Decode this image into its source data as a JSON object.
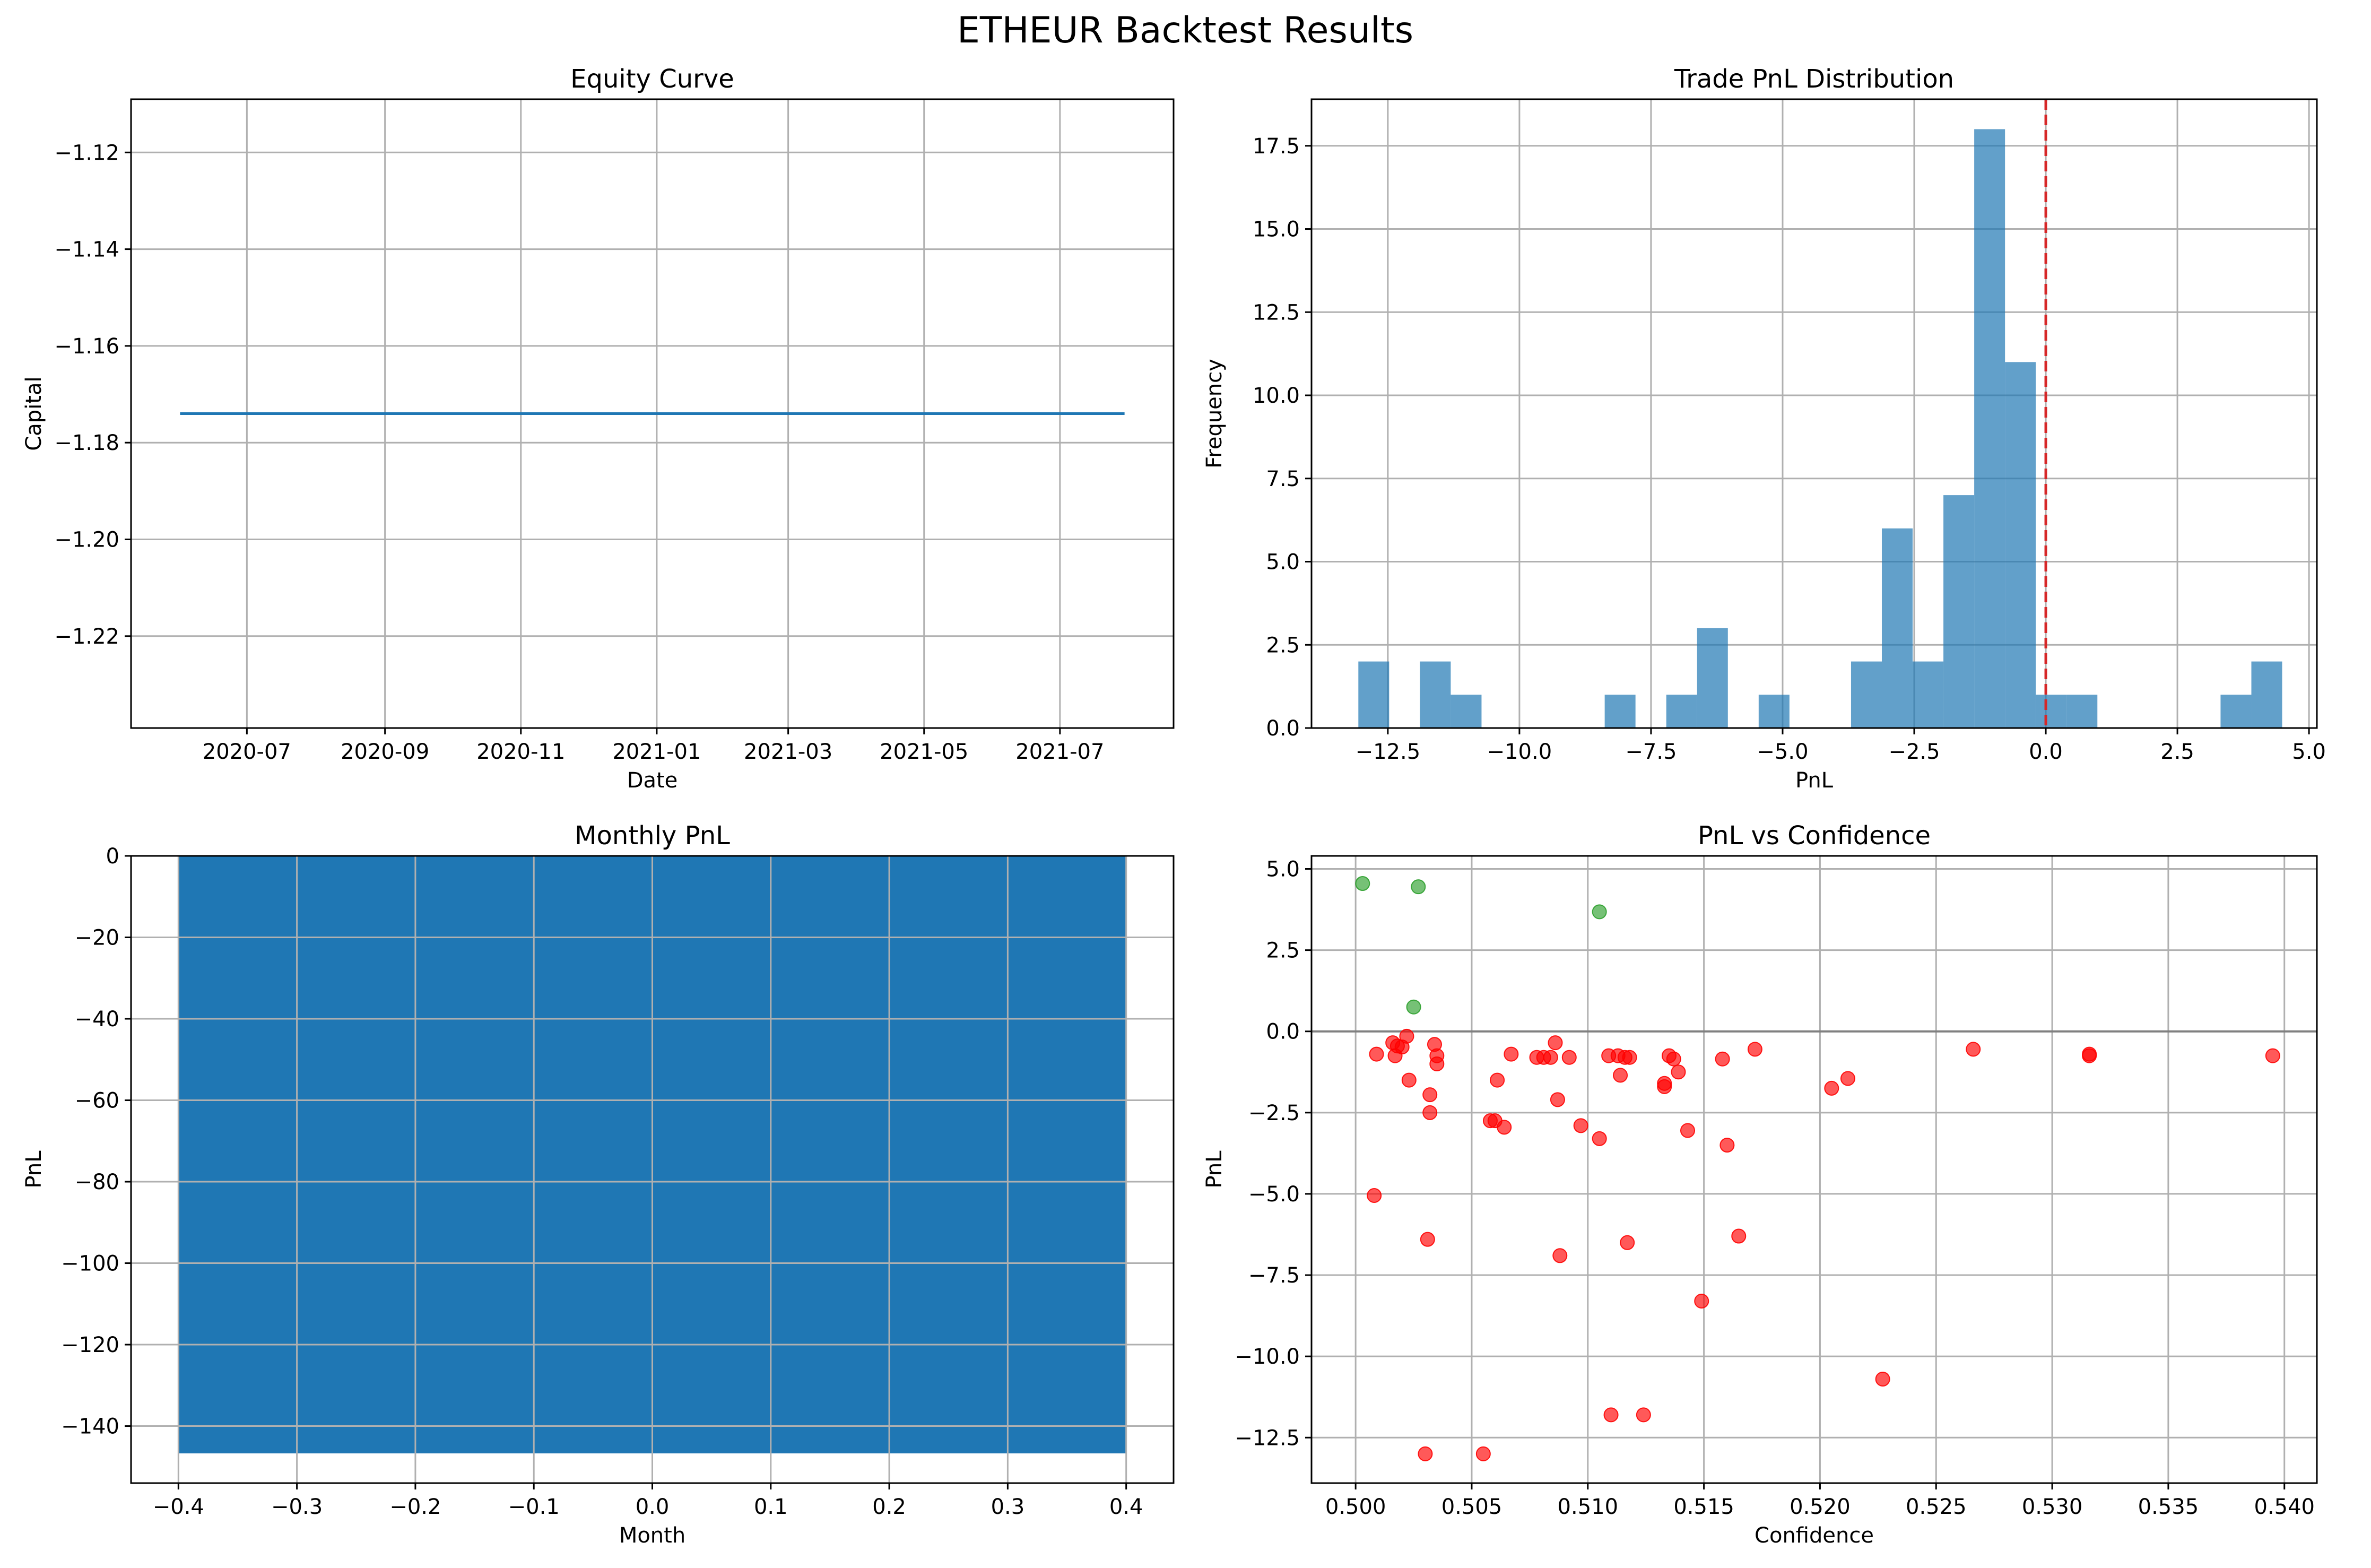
{
  "figure": {
    "title": "ETHEUR Backtest Results"
  },
  "chart_data": [
    {
      "id": "equity",
      "type": "line",
      "title": "Equity Curve",
      "xlabel": "Date",
      "ylabel": "Capital",
      "x_dates": [
        "2020-06-01",
        "2021-07-30"
      ],
      "xlim_dates": [
        "2020-05-10",
        "2021-08-21"
      ],
      "series": [
        {
          "x": [
            "2020-06-01",
            "2021-07-30"
          ],
          "values": [
            -1.174,
            -1.174
          ]
        }
      ],
      "ylim": [
        -1.239,
        -1.109
      ],
      "xticks": [
        "2020-07-01",
        "2020-09-01",
        "2020-11-01",
        "2021-01-01",
        "2021-03-01",
        "2021-05-01",
        "2021-07-01"
      ],
      "xtick_labels": [
        "2020-07",
        "2020-09",
        "2020-11",
        "2021-01",
        "2021-03",
        "2021-05",
        "2021-07"
      ],
      "yticks": [
        -1.22,
        -1.2,
        -1.18,
        -1.16,
        -1.14,
        -1.12
      ],
      "ytick_labels": [
        "−1.22",
        "−1.20",
        "−1.18",
        "−1.16",
        "−1.14",
        "−1.12"
      ],
      "grid": true,
      "color": "#1f77b4"
    },
    {
      "id": "hist",
      "type": "bar",
      "title": "Trade PnL Distribution",
      "xlabel": "PnL",
      "ylabel": "Frequency",
      "bin_start": -13.06,
      "bin_width": 0.585,
      "counts": [
        2,
        0,
        2,
        1,
        0,
        0,
        0,
        0,
        1,
        0,
        1,
        3,
        0,
        1,
        0,
        0,
        2,
        6,
        2,
        7,
        18,
        11,
        1,
        1,
        0,
        0,
        0,
        0,
        1,
        2
      ],
      "xlim": [
        -13.95,
        5.15
      ],
      "ylim": [
        0,
        18.9
      ],
      "xticks": [
        -12.5,
        -10,
        -7.5,
        -5,
        -2.5,
        0,
        2.5,
        5
      ],
      "xtick_labels": [
        "−12.5",
        "−10.0",
        "−7.5",
        "−5.0",
        "−2.5",
        "0.0",
        "2.5",
        "5.0"
      ],
      "yticks": [
        0,
        2.5,
        5,
        7.5,
        10,
        12.5,
        15,
        17.5
      ],
      "ytick_labels": [
        "0.0",
        "2.5",
        "5.0",
        "7.5",
        "10.0",
        "12.5",
        "15.0",
        "17.5"
      ],
      "vline": 0,
      "vline_color": "#d62728",
      "color": "#1f77b4",
      "grid": true
    },
    {
      "id": "monthly",
      "type": "bar",
      "title": "Monthly PnL",
      "xlabel": "Month",
      "ylabel": "PnL",
      "categories": [
        0
      ],
      "values": [
        -146.7
      ],
      "bar_width": 0.8,
      "xlim": [
        -0.44,
        0.44
      ],
      "ylim": [
        -154,
        0
      ],
      "xticks": [
        -0.4,
        -0.3,
        -0.2,
        -0.1,
        0,
        0.1,
        0.2,
        0.3,
        0.4
      ],
      "xtick_labels": [
        "−0.4",
        "−0.3",
        "−0.2",
        "−0.1",
        "0.0",
        "0.1",
        "0.2",
        "0.3",
        "0.4"
      ],
      "yticks": [
        -140,
        -120,
        -100,
        -80,
        -60,
        -40,
        -20,
        0
      ],
      "ytick_labels": [
        "−140",
        "−120",
        "−100",
        "−80",
        "−60",
        "−40",
        "−20",
        "0"
      ],
      "color": "#1f77b4",
      "grid": true
    },
    {
      "id": "scatter",
      "type": "scatter",
      "title": "PnL vs Confidence",
      "xlabel": "Confidence",
      "ylabel": "PnL",
      "xlim": [
        0.4981,
        0.5414
      ],
      "ylim": [
        -13.9,
        5.4
      ],
      "xticks": [
        0.5,
        0.505,
        0.51,
        0.515,
        0.52,
        0.525,
        0.53,
        0.535,
        0.54
      ],
      "xtick_labels": [
        "0.500",
        "0.505",
        "0.510",
        "0.515",
        "0.520",
        "0.525",
        "0.530",
        "0.535",
        "0.540"
      ],
      "yticks": [
        -12.5,
        -10,
        -7.5,
        -5,
        -2.5,
        0,
        2.5,
        5
      ],
      "ytick_labels": [
        "−12.5",
        "−10.0",
        "−7.5",
        "−5.0",
        "−2.5",
        "0.0",
        "2.5",
        "5.0"
      ],
      "hline": 0,
      "positive_color": "#2ca02c",
      "negative_color": "#ff0000",
      "grid": true,
      "points": [
        [
          0.5003,
          4.55
        ],
        [
          0.5027,
          4.45
        ],
        [
          0.5105,
          3.68
        ],
        [
          0.5025,
          0.75
        ],
        [
          0.5009,
          -0.7
        ],
        [
          0.5016,
          -0.35
        ],
        [
          0.5017,
          -0.75
        ],
        [
          0.5018,
          -0.45
        ],
        [
          0.502,
          -0.48
        ],
        [
          0.5022,
          -0.15
        ],
        [
          0.5023,
          -1.5
        ],
        [
          0.5008,
          -5.05
        ],
        [
          0.5032,
          -1.95
        ],
        [
          0.5032,
          -2.5
        ],
        [
          0.5031,
          -6.4
        ],
        [
          0.5034,
          -0.4
        ],
        [
          0.5035,
          -0.75
        ],
        [
          0.5035,
          -1.0
        ],
        [
          0.503,
          -13.0
        ],
        [
          0.5055,
          -13.0
        ],
        [
          0.5058,
          -2.75
        ],
        [
          0.506,
          -2.75
        ],
        [
          0.5061,
          -1.5
        ],
        [
          0.5064,
          -2.95
        ],
        [
          0.5067,
          -0.7
        ],
        [
          0.5078,
          -0.8
        ],
        [
          0.5081,
          -0.8
        ],
        [
          0.5084,
          -0.8
        ],
        [
          0.5086,
          -0.35
        ],
        [
          0.5087,
          -2.1
        ],
        [
          0.5088,
          -6.9
        ],
        [
          0.5092,
          -0.8
        ],
        [
          0.5097,
          -2.9
        ],
        [
          0.5105,
          -3.3
        ],
        [
          0.5109,
          -0.75
        ],
        [
          0.511,
          -11.8
        ],
        [
          0.5113,
          -0.75
        ],
        [
          0.5114,
          -1.35
        ],
        [
          0.5116,
          -0.8
        ],
        [
          0.5118,
          -0.8
        ],
        [
          0.5117,
          -6.5
        ],
        [
          0.5124,
          -11.8
        ],
        [
          0.5133,
          -1.6
        ],
        [
          0.5133,
          -1.7
        ],
        [
          0.5135,
          -0.75
        ],
        [
          0.5137,
          -0.85
        ],
        [
          0.5139,
          -1.25
        ],
        [
          0.5143,
          -3.05
        ],
        [
          0.5149,
          -8.3
        ],
        [
          0.5158,
          -0.85
        ],
        [
          0.516,
          -3.5
        ],
        [
          0.5165,
          -6.3
        ],
        [
          0.5172,
          -0.55
        ],
        [
          0.5205,
          -1.75
        ],
        [
          0.5212,
          -1.45
        ],
        [
          0.5227,
          -10.7
        ],
        [
          0.5266,
          -0.55
        ],
        [
          0.5316,
          -0.75
        ],
        [
          0.5316,
          -0.7
        ],
        [
          0.5395,
          -0.75
        ]
      ]
    }
  ]
}
